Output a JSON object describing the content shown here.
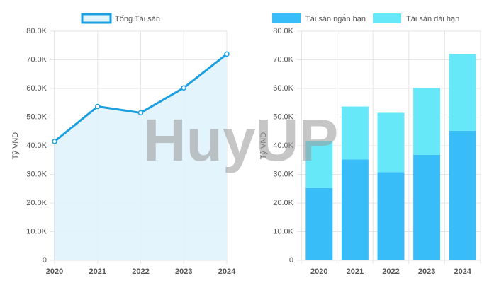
{
  "watermark": "HuyUP",
  "chart_data": [
    {
      "type": "line",
      "y_label": "Tỷ VND",
      "grid": true,
      "legend": "top",
      "categories": [
        "2020",
        "2021",
        "2022",
        "2023",
        "2024"
      ],
      "series": [
        {
          "name": "Tổng Tài sản",
          "color": "#1a9fe0",
          "fill": "#e1f3fc",
          "values": [
            41500,
            53700,
            51500,
            60200,
            72000
          ]
        }
      ],
      "ylim": [
        0,
        80000
      ],
      "yticks": [
        0,
        {
          "value": 10000,
          "label": "10.0K"
        },
        {
          "value": 20000,
          "label": "20.0K"
        },
        {
          "value": 30000,
          "label": "30.0K"
        },
        {
          "value": 40000,
          "label": "40.0K"
        },
        {
          "value": 50000,
          "label": "50.0K"
        },
        {
          "value": 60000,
          "label": "60.0K"
        },
        {
          "value": 70000,
          "label": "70.0K"
        },
        {
          "value": 80000,
          "label": "80.0K"
        }
      ]
    },
    {
      "type": "bar",
      "stacked": true,
      "y_label": "Tỷ VND",
      "grid": true,
      "legend": "top",
      "categories": [
        "2020",
        "2021",
        "2022",
        "2023",
        "2024"
      ],
      "series": [
        {
          "name": "Tài sản ngắn hạn",
          "color": "#38bdf8",
          "values": [
            25200,
            35200,
            30800,
            36800,
            45200
          ]
        },
        {
          "name": "Tài sản dài hạn",
          "color": "#67e8f9",
          "values": [
            16300,
            18500,
            20700,
            23400,
            26800
          ]
        }
      ],
      "ylim": [
        0,
        80000
      ],
      "yticks": [
        0,
        {
          "value": 10000,
          "label": "10.0K"
        },
        {
          "value": 20000,
          "label": "20.0K"
        },
        {
          "value": 30000,
          "label": "30.0K"
        },
        {
          "value": 40000,
          "label": "40.0K"
        },
        {
          "value": 50000,
          "label": "50.0K"
        },
        {
          "value": 60000,
          "label": "60.0K"
        },
        {
          "value": 70000,
          "label": "70.0K"
        },
        {
          "value": 80000,
          "label": "80.0K"
        }
      ]
    }
  ]
}
